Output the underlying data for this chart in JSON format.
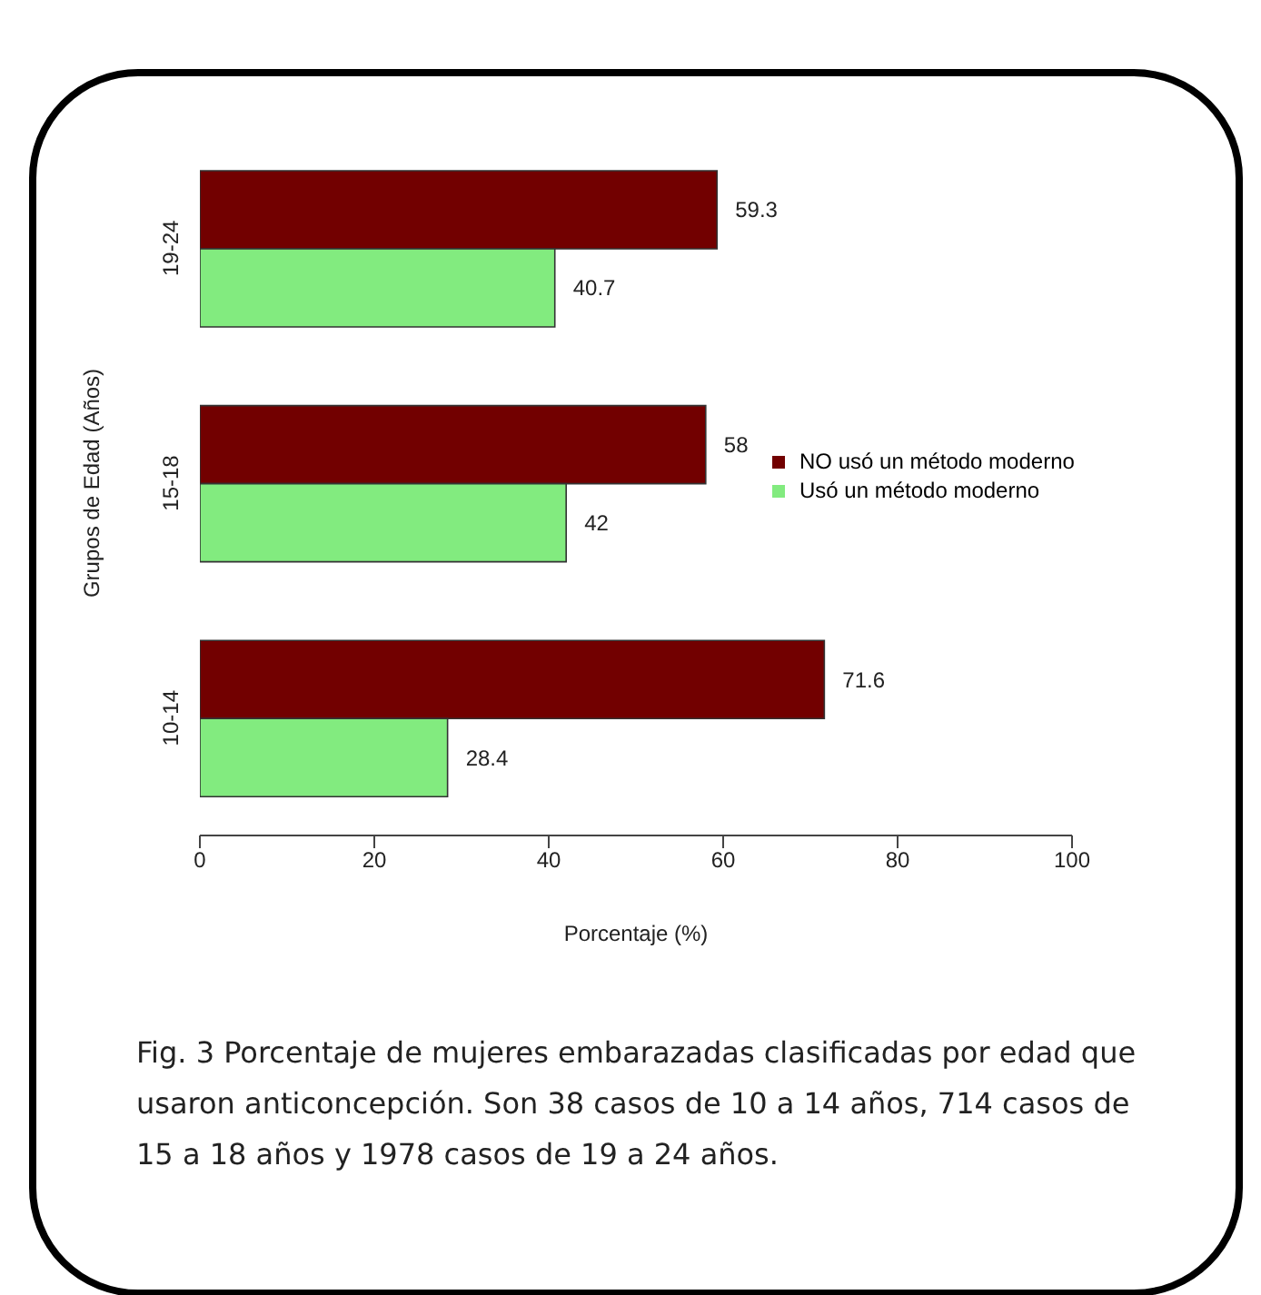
{
  "chart_data": {
    "type": "bar",
    "orientation": "horizontal",
    "categories": [
      "19-24",
      "15-18",
      "10-14"
    ],
    "series": [
      {
        "name": "NO usó un método moderno",
        "color": "#720000",
        "values": [
          59.3,
          58,
          71.6
        ]
      },
      {
        "name": "Usó un método moderno",
        "color": "#82eb7f",
        "values": [
          40.7,
          42,
          28.4
        ]
      }
    ],
    "xlabel": "Porcentaje (%)",
    "ylabel": "Grupos de Edad (Años)",
    "xlim": [
      0,
      100
    ],
    "xticks": [
      0,
      20,
      40,
      60,
      80,
      100
    ],
    "data_labels": true,
    "legend": "right",
    "grid": false,
    "annotations": [
      "Fig. 3 Porcentaje de mujeres embarazadas clasificadas por edad que usaron anticoncepción. Son 38 casos de 10 a 14 años, 714 casos de 15 a 18 años y 1978 casos de 19 a 24 años."
    ]
  }
}
